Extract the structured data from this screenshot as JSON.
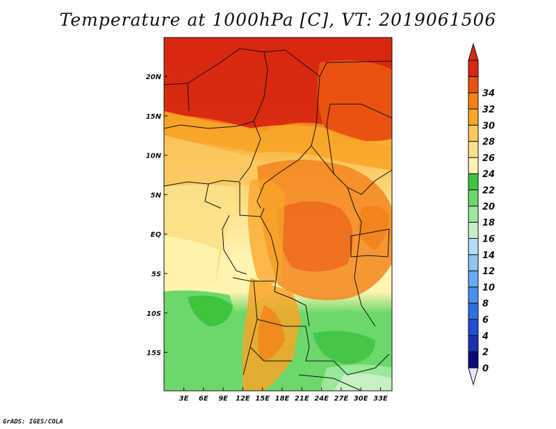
{
  "title": "Temperature at 1000hPa [C], VT: 2019061506",
  "credit": "GrADS: IGES/COLA",
  "map": {
    "lat_labels": [
      "20N",
      "15N",
      "10N",
      "5N",
      "EQ",
      "5S",
      "10S",
      "15S"
    ],
    "lon_labels": [
      "3E",
      "6E",
      "9E",
      "12E",
      "15E",
      "18E",
      "21E",
      "24E",
      "27E",
      "30E",
      "33E"
    ]
  },
  "colorbar": {
    "labels": [
      "0",
      "2",
      "4",
      "6",
      "8",
      "10",
      "12",
      "14",
      "16",
      "18",
      "20",
      "22",
      "24",
      "26",
      "28",
      "30",
      "32",
      "34"
    ],
    "colors": [
      "#0a0a7a",
      "#1a2fb0",
      "#1f4fd0",
      "#2f6fe0",
      "#4a8ee8",
      "#6aaaf0",
      "#8cc4f4",
      "#b4dcf8",
      "#c8f0c4",
      "#9ae89a",
      "#6cd86c",
      "#3ec43e",
      "#fff4b0",
      "#fde088",
      "#fbc860",
      "#f8a628",
      "#f48018",
      "#ea5210",
      "#d82810"
    ],
    "under_color": "#e4e4f8",
    "over_color": "#d82810"
  }
}
